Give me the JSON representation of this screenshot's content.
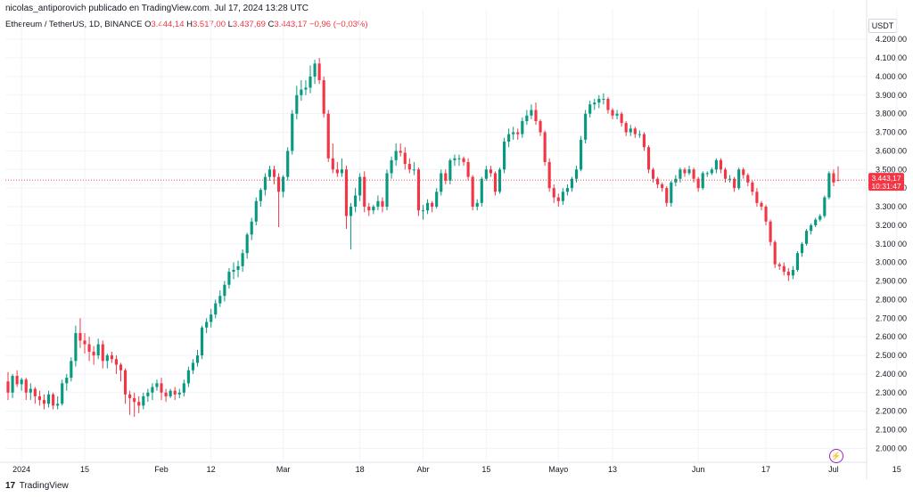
{
  "header": {
    "author": "nicolas_antiporovich publicado en TradingView.com, Jul 17, 2024 13:28 UTC"
  },
  "symbol": {
    "title": "Ethereum / TetherUS, 1D, BINANCE",
    "open_label": "O",
    "open": "3.444,14",
    "high_label": "H",
    "high": "3.517,00",
    "low_label": "L",
    "low": "3.437,69",
    "close_label": "C",
    "close": "3.443,17",
    "change": "−0,96 (−0,03%)"
  },
  "currency": "USDT",
  "price_tag": {
    "price": "3.443,17",
    "countdown": "10:31:47"
  },
  "footer": {
    "logo": "17",
    "brand": "TradingView"
  },
  "colors": {
    "up": "#089981",
    "down": "#f23645",
    "grid": "#f0f3fa",
    "axis_text": "#131722"
  },
  "chart_data": {
    "type": "candlestick",
    "ylim": [
      1930,
      4220
    ],
    "y_ticks": [
      2000,
      2100,
      2200,
      2300,
      2400,
      2500,
      2600,
      2700,
      2800,
      2900,
      3000,
      3100,
      3200,
      3300,
      3400,
      3500,
      3600,
      3700,
      3800,
      3900,
      4000,
      4100,
      4200
    ],
    "y_tick_labels": [
      "2.000,00",
      "2.100,00",
      "2.200,00",
      "2.300,00",
      "2.400,00",
      "2.500,00",
      "2.600,00",
      "2.700,00",
      "2.800,00",
      "2.900,00",
      "3.000,00",
      "3.100,00",
      "3.200,00",
      "3.300,00",
      "3.400,00",
      "3.500,00",
      "3.600,00",
      "3.700,00",
      "3.800,00",
      "3.900,00",
      "4.000,00",
      "4.100,00",
      "4.200,00"
    ],
    "x_ticks": [
      {
        "index": 3,
        "label": "2024"
      },
      {
        "index": 17,
        "label": "15"
      },
      {
        "index": 34,
        "label": "Feb"
      },
      {
        "index": 45,
        "label": "12"
      },
      {
        "index": 61,
        "label": "Mar"
      },
      {
        "index": 78,
        "label": "18"
      },
      {
        "index": 92,
        "label": "Abr"
      },
      {
        "index": 106,
        "label": "15"
      },
      {
        "index": 122,
        "label": "Mayo"
      },
      {
        "index": 134,
        "label": "13"
      },
      {
        "index": 153,
        "label": "Jun"
      },
      {
        "index": 168,
        "label": "17"
      },
      {
        "index": 183,
        "label": "Jul"
      },
      {
        "index": 197,
        "label": "15"
      }
    ],
    "closes": [
      2345,
      2370,
      2300,
      2320,
      2280,
      2260,
      2240,
      2290,
      2230,
      2240,
      2350,
      2380,
      2470,
      2620,
      2580,
      2560,
      2520,
      2500,
      2560,
      2470,
      2500,
      2480,
      2450,
      2420,
      2290,
      2270,
      2250,
      2230,
      2280,
      2300,
      2330,
      2350,
      2300,
      2280,
      2310,
      2290,
      2300,
      2350,
      2420,
      2460,
      2500,
      2650,
      2680,
      2720,
      2780,
      2820,
      2880,
      2950,
      2960,
      2980,
      3050,
      3150,
      3220,
      3330,
      3390,
      3460,
      3500,
      3460,
      3380,
      3460,
      3600,
      3800,
      3900,
      3930,
      3940,
      4000,
      4070,
      3980,
      3800,
      3560,
      3500,
      3480,
      3500,
      3250,
      3300,
      3360,
      3460,
      3300,
      3280,
      3300,
      3330,
      3300,
      3480,
      3550,
      3600,
      3590,
      3530,
      3500,
      3500,
      3280,
      3280,
      3320,
      3300,
      3380,
      3480,
      3440,
      3550,
      3560,
      3560,
      3540,
      3460,
      3300,
      3320,
      3450,
      3500,
      3480,
      3380,
      3500,
      3650,
      3690,
      3700,
      3690,
      3760,
      3790,
      3820,
      3760,
      3700,
      3540,
      3400,
      3350,
      3330,
      3380,
      3400,
      3450,
      3500,
      3660,
      3800,
      3850,
      3860,
      3880,
      3880,
      3820,
      3790,
      3800,
      3750,
      3700,
      3720,
      3690,
      3690,
      3620,
      3500,
      3450,
      3420,
      3400,
      3320,
      3430,
      3450,
      3500,
      3480,
      3500,
      3450,
      3400,
      3480,
      3480,
      3500,
      3550,
      3500,
      3450,
      3450,
      3400,
      3500,
      3470,
      3430,
      3380,
      3320,
      3300,
      3220,
      3110,
      2990,
      2980,
      2950,
      2930,
      2960,
      3050,
      3100,
      3170,
      3200,
      3230,
      3250,
      3350,
      3480,
      3430,
      3443
    ],
    "candles": [
      [
        2360,
        2410,
        2260,
        2300
      ],
      [
        2300,
        2400,
        2270,
        2390
      ],
      [
        2390,
        2420,
        2330,
        2345
      ],
      [
        2345,
        2380,
        2310,
        2370
      ],
      [
        2370,
        2380,
        2260,
        2300
      ],
      [
        2300,
        2350,
        2260,
        2320
      ],
      [
        2320,
        2330,
        2240,
        2280
      ],
      [
        2280,
        2310,
        2230,
        2260
      ],
      [
        2260,
        2290,
        2210,
        2240
      ],
      [
        2240,
        2310,
        2220,
        2290
      ],
      [
        2290,
        2300,
        2210,
        2230
      ],
      [
        2230,
        2280,
        2210,
        2240
      ],
      [
        2240,
        2370,
        2230,
        2350
      ],
      [
        2350,
        2400,
        2310,
        2380
      ],
      [
        2380,
        2490,
        2360,
        2470
      ],
      [
        2470,
        2660,
        2440,
        2620
      ],
      [
        2620,
        2700,
        2540,
        2580
      ],
      [
        2580,
        2620,
        2510,
        2560
      ],
      [
        2560,
        2600,
        2470,
        2520
      ],
      [
        2520,
        2550,
        2450,
        2500
      ],
      [
        2500,
        2590,
        2480,
        2560
      ],
      [
        2560,
        2580,
        2430,
        2470
      ],
      [
        2470,
        2510,
        2430,
        2500
      ],
      [
        2500,
        2520,
        2460,
        2480
      ],
      [
        2480,
        2500,
        2400,
        2450
      ],
      [
        2450,
        2460,
        2360,
        2420
      ],
      [
        2420,
        2430,
        2240,
        2290
      ],
      [
        2290,
        2310,
        2180,
        2270
      ],
      [
        2270,
        2300,
        2170,
        2250
      ],
      [
        2250,
        2280,
        2190,
        2230
      ],
      [
        2230,
        2300,
        2210,
        2280
      ],
      [
        2280,
        2320,
        2250,
        2300
      ],
      [
        2300,
        2350,
        2260,
        2330
      ],
      [
        2330,
        2370,
        2310,
        2350
      ],
      [
        2350,
        2380,
        2260,
        2300
      ],
      [
        2300,
        2320,
        2250,
        2280
      ],
      [
        2280,
        2320,
        2270,
        2310
      ],
      [
        2310,
        2330,
        2260,
        2290
      ],
      [
        2290,
        2320,
        2270,
        2300
      ],
      [
        2300,
        2370,
        2280,
        2350
      ],
      [
        2350,
        2440,
        2330,
        2420
      ],
      [
        2420,
        2480,
        2400,
        2460
      ],
      [
        2460,
        2530,
        2440,
        2500
      ],
      [
        2500,
        2660,
        2480,
        2650
      ],
      [
        2650,
        2700,
        2620,
        2680
      ],
      [
        2680,
        2750,
        2650,
        2720
      ],
      [
        2720,
        2800,
        2700,
        2780
      ],
      [
        2780,
        2850,
        2760,
        2820
      ],
      [
        2820,
        2900,
        2790,
        2880
      ],
      [
        2880,
        2970,
        2860,
        2950
      ],
      [
        2950,
        3000,
        2910,
        2960
      ],
      [
        2960,
        3010,
        2920,
        2980
      ],
      [
        2980,
        3070,
        2950,
        3050
      ],
      [
        3050,
        3160,
        3020,
        3150
      ],
      [
        3150,
        3240,
        3120,
        3220
      ],
      [
        3220,
        3350,
        3200,
        3330
      ],
      [
        3330,
        3400,
        3300,
        3390
      ],
      [
        3390,
        3480,
        3360,
        3460
      ],
      [
        3460,
        3520,
        3440,
        3500
      ],
      [
        3500,
        3520,
        3420,
        3460
      ],
      [
        3460,
        3480,
        3190,
        3380
      ],
      [
        3380,
        3470,
        3350,
        3460
      ],
      [
        3460,
        3620,
        3440,
        3600
      ],
      [
        3600,
        3820,
        3580,
        3800
      ],
      [
        3800,
        3950,
        3770,
        3900
      ],
      [
        3900,
        3980,
        3870,
        3930
      ],
      [
        3930,
        3980,
        3900,
        3940
      ],
      [
        3940,
        4060,
        3910,
        4000
      ],
      [
        4000,
        4090,
        3960,
        4070
      ],
      [
        4070,
        4100,
        3960,
        3980
      ],
      [
        3980,
        4000,
        3780,
        3800
      ],
      [
        3800,
        3820,
        3540,
        3560
      ],
      [
        3560,
        3640,
        3480,
        3500
      ],
      [
        3500,
        3540,
        3460,
        3480
      ],
      [
        3480,
        3560,
        3460,
        3500
      ],
      [
        3500,
        3520,
        3180,
        3250
      ],
      [
        3250,
        3320,
        3070,
        3300
      ],
      [
        3300,
        3400,
        3270,
        3360
      ],
      [
        3360,
        3480,
        3330,
        3460
      ],
      [
        3460,
        3490,
        3270,
        3300
      ],
      [
        3300,
        3320,
        3250,
        3280
      ],
      [
        3280,
        3310,
        3260,
        3300
      ],
      [
        3300,
        3360,
        3280,
        3330
      ],
      [
        3330,
        3350,
        3270,
        3300
      ],
      [
        3300,
        3500,
        3280,
        3480
      ],
      [
        3480,
        3570,
        3450,
        3550
      ],
      [
        3550,
        3640,
        3520,
        3600
      ],
      [
        3600,
        3640,
        3570,
        3590
      ],
      [
        3590,
        3620,
        3500,
        3530
      ],
      [
        3530,
        3560,
        3480,
        3500
      ],
      [
        3500,
        3540,
        3470,
        3500
      ],
      [
        3500,
        3510,
        3250,
        3280
      ],
      [
        3280,
        3310,
        3230,
        3280
      ],
      [
        3280,
        3340,
        3260,
        3320
      ],
      [
        3320,
        3330,
        3270,
        3300
      ],
      [
        3300,
        3400,
        3290,
        3380
      ],
      [
        3380,
        3500,
        3360,
        3480
      ],
      [
        3480,
        3500,
        3420,
        3440
      ],
      [
        3440,
        3560,
        3420,
        3550
      ],
      [
        3550,
        3580,
        3520,
        3560
      ],
      [
        3560,
        3580,
        3520,
        3560
      ],
      [
        3560,
        3570,
        3520,
        3540
      ],
      [
        3540,
        3560,
        3440,
        3460
      ],
      [
        3460,
        3470,
        3280,
        3300
      ],
      [
        3300,
        3340,
        3280,
        3320
      ],
      [
        3320,
        3460,
        3300,
        3450
      ],
      [
        3450,
        3520,
        3440,
        3500
      ],
      [
        3500,
        3520,
        3460,
        3480
      ],
      [
        3480,
        3490,
        3360,
        3380
      ],
      [
        3380,
        3510,
        3370,
        3500
      ],
      [
        3500,
        3670,
        3480,
        3650
      ],
      [
        3650,
        3720,
        3620,
        3690
      ],
      [
        3690,
        3730,
        3660,
        3700
      ],
      [
        3700,
        3720,
        3660,
        3690
      ],
      [
        3690,
        3780,
        3670,
        3760
      ],
      [
        3760,
        3820,
        3740,
        3790
      ],
      [
        3790,
        3850,
        3770,
        3820
      ],
      [
        3820,
        3860,
        3740,
        3760
      ],
      [
        3760,
        3770,
        3680,
        3700
      ],
      [
        3700,
        3710,
        3520,
        3540
      ],
      [
        3540,
        3560,
        3380,
        3400
      ],
      [
        3400,
        3420,
        3320,
        3350
      ],
      [
        3350,
        3370,
        3300,
        3330
      ],
      [
        3330,
        3400,
        3310,
        3380
      ],
      [
        3380,
        3420,
        3360,
        3400
      ],
      [
        3400,
        3460,
        3380,
        3450
      ],
      [
        3450,
        3520,
        3430,
        3500
      ],
      [
        3500,
        3680,
        3490,
        3660
      ],
      [
        3660,
        3820,
        3640,
        3800
      ],
      [
        3800,
        3870,
        3780,
        3850
      ],
      [
        3850,
        3880,
        3820,
        3860
      ],
      [
        3860,
        3900,
        3830,
        3880
      ],
      [
        3880,
        3910,
        3850,
        3880
      ],
      [
        3880,
        3890,
        3800,
        3820
      ],
      [
        3820,
        3830,
        3770,
        3790
      ],
      [
        3790,
        3820,
        3770,
        3800
      ],
      [
        3800,
        3810,
        3730,
        3750
      ],
      [
        3750,
        3760,
        3680,
        3700
      ],
      [
        3700,
        3740,
        3680,
        3720
      ],
      [
        3720,
        3730,
        3670,
        3690
      ],
      [
        3690,
        3710,
        3670,
        3690
      ],
      [
        3690,
        3700,
        3600,
        3620
      ],
      [
        3620,
        3630,
        3480,
        3500
      ],
      [
        3500,
        3510,
        3430,
        3450
      ],
      [
        3450,
        3460,
        3400,
        3420
      ],
      [
        3420,
        3430,
        3380,
        3400
      ],
      [
        3400,
        3410,
        3300,
        3320
      ],
      [
        3320,
        3440,
        3300,
        3430
      ],
      [
        3430,
        3470,
        3410,
        3450
      ],
      [
        3450,
        3510,
        3430,
        3500
      ],
      [
        3500,
        3510,
        3460,
        3480
      ],
      [
        3480,
        3520,
        3470,
        3500
      ],
      [
        3500,
        3510,
        3430,
        3450
      ],
      [
        3450,
        3460,
        3380,
        3400
      ],
      [
        3400,
        3490,
        3390,
        3480
      ],
      [
        3480,
        3490,
        3460,
        3480
      ],
      [
        3480,
        3510,
        3470,
        3500
      ],
      [
        3500,
        3560,
        3480,
        3550
      ],
      [
        3550,
        3560,
        3480,
        3500
      ],
      [
        3500,
        3510,
        3430,
        3450
      ],
      [
        3450,
        3470,
        3430,
        3450
      ],
      [
        3450,
        3460,
        3380,
        3400
      ],
      [
        3400,
        3510,
        3390,
        3500
      ],
      [
        3500,
        3510,
        3450,
        3470
      ],
      [
        3470,
        3480,
        3410,
        3430
      ],
      [
        3430,
        3440,
        3360,
        3380
      ],
      [
        3380,
        3400,
        3300,
        3320
      ],
      [
        3320,
        3330,
        3280,
        3300
      ],
      [
        3300,
        3310,
        3200,
        3220
      ],
      [
        3220,
        3230,
        3090,
        3110
      ],
      [
        3110,
        3120,
        2970,
        2990
      ],
      [
        2990,
        3000,
        2960,
        2980
      ],
      [
        2980,
        3000,
        2930,
        2950
      ],
      [
        2950,
        2970,
        2900,
        2930
      ],
      [
        2930,
        2980,
        2910,
        2960
      ],
      [
        2960,
        3060,
        2950,
        3050
      ],
      [
        3050,
        3110,
        3030,
        3100
      ],
      [
        3100,
        3180,
        3090,
        3170
      ],
      [
        3170,
        3210,
        3150,
        3200
      ],
      [
        3200,
        3240,
        3190,
        3230
      ],
      [
        3230,
        3260,
        3220,
        3250
      ],
      [
        3250,
        3360,
        3240,
        3350
      ],
      [
        3350,
        3490,
        3340,
        3480
      ],
      [
        3480,
        3500,
        3410,
        3430
      ],
      [
        3444,
        3517,
        3437,
        3443
      ]
    ]
  }
}
